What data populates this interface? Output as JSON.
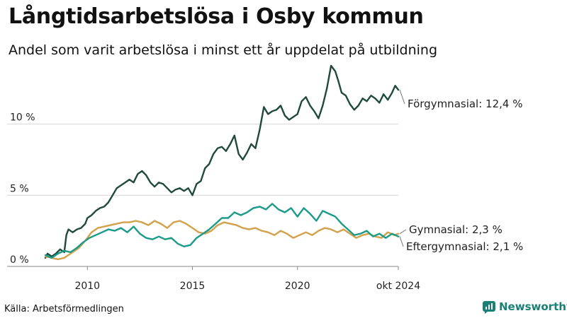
{
  "header": {
    "title": "Långtidsarbetslösa i Osby kommun",
    "subtitle": "Andel som varit arbetslösa i minst ett år uppdelat på utbildning"
  },
  "footer": {
    "source": "Källa: Arbetsförmedlingen",
    "brand": "Newsworthy"
  },
  "colors": {
    "forgymnasial": "#1f4a3d",
    "gymnasial": "#d2a14a",
    "eftergymnasial": "#1a9b8a",
    "brand": "#1a7f74"
  },
  "chart_data": {
    "type": "line",
    "title": "Långtidsarbetslösa i Osby kommun",
    "subtitle": "Andel som varit arbetslösa i minst ett år uppdelat på utbildning",
    "xlabel": "",
    "ylabel": "",
    "xlim": [
      2008.0,
      2024.8
    ],
    "ylim": [
      0,
      14
    ],
    "x_ticks": [
      {
        "value": 2010,
        "label": "2010"
      },
      {
        "value": 2015,
        "label": "2015"
      },
      {
        "value": 2020,
        "label": "2020"
      },
      {
        "value": 2024.8,
        "label": "okt 2024"
      }
    ],
    "y_ticks": [
      {
        "value": 0,
        "label": "0 %"
      },
      {
        "value": 5,
        "label": "5 %"
      },
      {
        "value": 10,
        "label": "10 %"
      }
    ],
    "grid": true,
    "series": [
      {
        "key": "forgymnasial",
        "name": "Förgymnasial",
        "end_label": "Förgymnasial: 12,4 %",
        "x": [
          2008.0,
          2008.1,
          2008.3,
          2008.5,
          2008.7,
          2008.9,
          2009.0,
          2009.1,
          2009.3,
          2009.5,
          2009.7,
          2009.9,
          2010.0,
          2010.2,
          2010.4,
          2010.6,
          2010.8,
          2011.0,
          2011.2,
          2011.4,
          2011.6,
          2011.8,
          2012.0,
          2012.2,
          2012.4,
          2012.6,
          2012.8,
          2013.0,
          2013.2,
          2013.4,
          2013.6,
          2013.8,
          2014.0,
          2014.2,
          2014.4,
          2014.6,
          2014.8,
          2015.0,
          2015.2,
          2015.4,
          2015.6,
          2015.8,
          2016.0,
          2016.2,
          2016.4,
          2016.6,
          2016.8,
          2017.0,
          2017.2,
          2017.4,
          2017.6,
          2017.8,
          2018.0,
          2018.2,
          2018.4,
          2018.6,
          2018.8,
          2019.0,
          2019.2,
          2019.4,
          2019.6,
          2019.8,
          2020.0,
          2020.2,
          2020.4,
          2020.6,
          2020.8,
          2021.0,
          2021.2,
          2021.4,
          2021.6,
          2021.8,
          2021.95,
          2022.1,
          2022.3,
          2022.5,
          2022.7,
          2022.9,
          2023.1,
          2023.3,
          2023.5,
          2023.7,
          2023.9,
          2024.1,
          2024.3,
          2024.5,
          2024.65,
          2024.8
        ],
        "y": [
          0.6,
          0.9,
          0.7,
          0.9,
          1.2,
          1.0,
          2.2,
          2.6,
          2.4,
          2.6,
          2.7,
          3.0,
          3.4,
          3.6,
          3.9,
          4.1,
          4.2,
          4.5,
          5.0,
          5.5,
          5.7,
          5.9,
          6.1,
          5.9,
          6.5,
          6.7,
          6.4,
          5.9,
          5.6,
          5.9,
          5.8,
          5.5,
          5.2,
          5.4,
          5.5,
          5.3,
          5.5,
          5.0,
          5.8,
          6.0,
          6.9,
          7.2,
          7.9,
          8.3,
          8.4,
          8.1,
          8.6,
          9.2,
          7.9,
          7.5,
          8.0,
          8.6,
          8.3,
          9.6,
          11.2,
          10.7,
          10.9,
          11.0,
          11.3,
          10.6,
          10.3,
          10.5,
          10.7,
          11.6,
          11.9,
          11.3,
          10.9,
          10.4,
          11.3,
          12.5,
          14.1,
          13.7,
          13.0,
          12.2,
          12.0,
          11.4,
          11.0,
          11.3,
          11.8,
          11.6,
          12.0,
          11.8,
          11.5,
          12.1,
          11.7,
          12.2,
          12.7,
          12.4
        ]
      },
      {
        "key": "gymnasial",
        "name": "Gymnasial",
        "end_label": "Gymnasial:  2,3 %",
        "x": [
          2008.0,
          2008.3,
          2008.6,
          2008.9,
          2009.1,
          2009.3,
          2009.6,
          2009.9,
          2010.2,
          2010.5,
          2010.8,
          2011.1,
          2011.4,
          2011.7,
          2012.0,
          2012.3,
          2012.6,
          2012.9,
          2013.2,
          2013.5,
          2013.8,
          2014.1,
          2014.4,
          2014.7,
          2015.0,
          2015.3,
          2015.6,
          2015.9,
          2016.2,
          2016.5,
          2016.8,
          2017.1,
          2017.4,
          2017.7,
          2018.0,
          2018.3,
          2018.6,
          2018.9,
          2019.2,
          2019.5,
          2019.8,
          2020.1,
          2020.4,
          2020.7,
          2021.0,
          2021.3,
          2021.6,
          2021.9,
          2022.2,
          2022.5,
          2022.8,
          2023.1,
          2023.4,
          2023.7,
          2024.0,
          2024.3,
          2024.6,
          2024.8
        ],
        "y": [
          0.7,
          0.6,
          0.5,
          0.6,
          0.8,
          1.0,
          1.3,
          1.8,
          2.4,
          2.7,
          2.8,
          2.9,
          3.0,
          3.1,
          3.1,
          3.2,
          3.1,
          2.9,
          3.2,
          3.0,
          2.7,
          3.1,
          3.2,
          3.0,
          2.7,
          2.4,
          2.3,
          2.5,
          2.9,
          3.1,
          3.0,
          2.9,
          2.7,
          2.6,
          2.7,
          2.5,
          2.4,
          2.2,
          2.5,
          2.3,
          2.0,
          2.2,
          2.4,
          2.2,
          2.5,
          2.7,
          2.6,
          2.4,
          2.6,
          2.3,
          2.0,
          2.2,
          2.3,
          2.1,
          2.0,
          2.4,
          2.2,
          2.3
        ]
      },
      {
        "key": "eftergymnasial",
        "name": "Eftergymnasial",
        "end_label": "Eftergymnasial:  2,1 %",
        "x": [
          2008.0,
          2008.3,
          2008.6,
          2008.9,
          2009.2,
          2009.5,
          2009.8,
          2010.1,
          2010.4,
          2010.7,
          2011.0,
          2011.3,
          2011.6,
          2011.9,
          2012.2,
          2012.5,
          2012.8,
          2013.1,
          2013.4,
          2013.7,
          2014.0,
          2014.3,
          2014.6,
          2014.9,
          2015.2,
          2015.5,
          2015.8,
          2016.1,
          2016.4,
          2016.7,
          2017.0,
          2017.3,
          2017.6,
          2017.9,
          2018.2,
          2018.5,
          2018.8,
          2019.1,
          2019.4,
          2019.7,
          2020.0,
          2020.3,
          2020.6,
          2020.9,
          2021.2,
          2021.5,
          2021.8,
          2022.1,
          2022.4,
          2022.7,
          2023.0,
          2023.3,
          2023.6,
          2023.9,
          2024.2,
          2024.5,
          2024.8
        ],
        "y": [
          0.8,
          0.6,
          0.9,
          1.1,
          1.0,
          1.3,
          1.7,
          2.0,
          2.2,
          2.4,
          2.6,
          2.5,
          2.7,
          2.4,
          2.8,
          2.3,
          2.0,
          1.9,
          2.1,
          1.9,
          2.0,
          1.6,
          1.4,
          1.5,
          2.0,
          2.3,
          2.6,
          3.0,
          3.4,
          3.4,
          3.8,
          3.6,
          3.8,
          4.1,
          4.2,
          4.0,
          4.4,
          4.0,
          3.8,
          4.1,
          3.5,
          4.1,
          3.7,
          3.2,
          3.9,
          3.7,
          3.5,
          3.0,
          2.6,
          2.2,
          2.3,
          2.5,
          2.1,
          2.3,
          2.0,
          2.3,
          2.1
        ]
      }
    ]
  }
}
